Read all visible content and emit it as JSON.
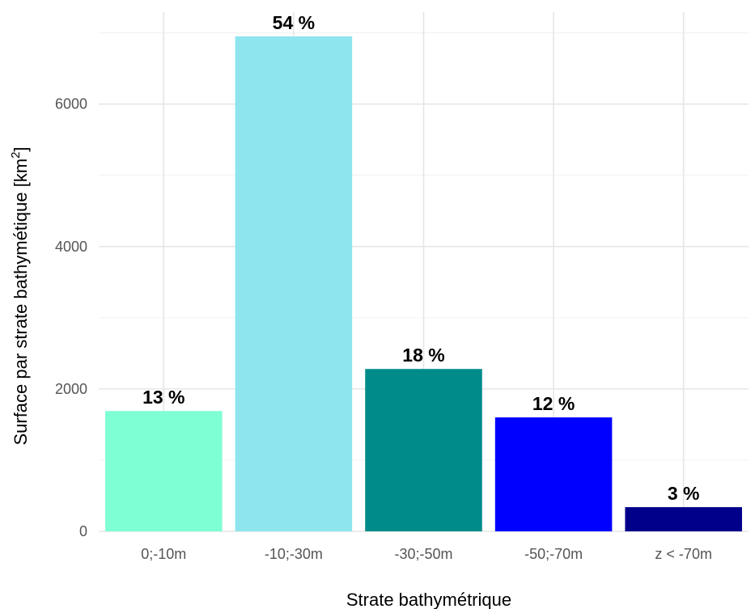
{
  "chart_data": {
    "type": "bar",
    "categories": [
      "0;-10m",
      "-10;-30m",
      "-30;-50m",
      "-50;-70m",
      "z < -70m"
    ],
    "values": [
      1690,
      6950,
      2280,
      1600,
      340
    ],
    "data_labels": [
      "13 %",
      "54 %",
      "18 %",
      "12 %",
      "3 %"
    ],
    "colors": [
      "#7fffd4",
      "#8ee5ee",
      "#008b8b",
      "#0000ff",
      "#00008b"
    ],
    "xlabel": "Strate bathymétrique",
    "ylabel_main": "Surface par strate bathymétique ",
    "ylabel_unit": "km",
    "ylabel_sup": "2",
    "ylim": [
      0,
      7000
    ],
    "yticks": [
      0,
      2000,
      4000,
      6000
    ],
    "grid": true,
    "legend": "none"
  }
}
